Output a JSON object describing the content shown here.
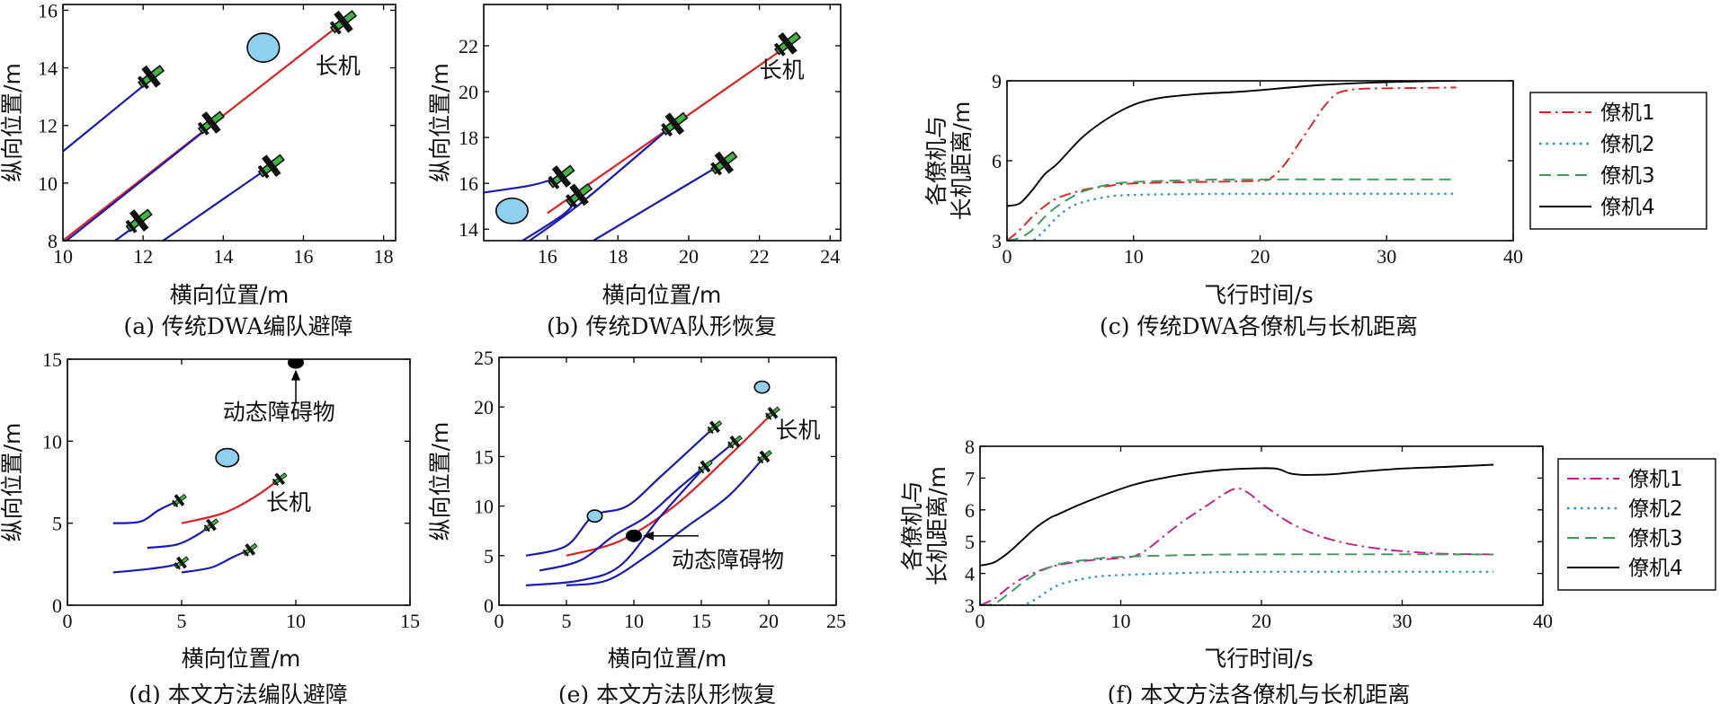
{
  "colors": {
    "leader": "#e02020",
    "follower": "#1a1ab5",
    "obstacle": "#8fd0ee",
    "plane": "#3fb63f",
    "black": "#000000",
    "dist1_c": "#e02020",
    "dist1_f": "#c81a8c",
    "dist2": "#1f8fd6",
    "dist3": "#3a9a5a",
    "dist4": "#000000"
  },
  "chart_data": [
    {
      "id": "a",
      "type": "line",
      "caption": "(a) 传统DWA编队避障",
      "xlabel": "横向位置/m",
      "ylabel": "纵向位置/m",
      "xlim": [
        10,
        18.3
      ],
      "ylim": [
        8,
        16.2
      ],
      "xticks": [
        "10",
        "12",
        "14",
        "16",
        "18"
      ],
      "xtick_values": [
        10,
        12,
        14,
        16,
        18
      ],
      "yticks": [
        "8",
        "10",
        "12",
        "14",
        "16"
      ],
      "ytick_values": [
        8,
        10,
        12,
        14,
        16
      ],
      "series": [
        {
          "role": "leader",
          "points": [
            [
              10.0,
              8.0
            ],
            [
              17.0,
              15.6
            ]
          ]
        },
        {
          "role": "follower",
          "points": [
            [
              10.0,
              11.1
            ],
            [
              12.2,
              13.6
            ]
          ]
        },
        {
          "role": "follower",
          "points": [
            [
              10.0,
              7.9
            ],
            [
              13.7,
              12.0
            ]
          ]
        },
        {
          "role": "follower",
          "points": [
            [
              11.3,
              8.0
            ],
            [
              12.0,
              8.7
            ]
          ]
        },
        {
          "role": "follower",
          "points": [
            [
              12.5,
              8.0
            ],
            [
              15.2,
              10.6
            ]
          ]
        }
      ],
      "obstacles": [
        {
          "x": 15.0,
          "y": 14.7,
          "rx": 0.4,
          "ry": 0.5
        }
      ],
      "aircraft": [
        [
          17.0,
          15.6
        ],
        [
          12.2,
          13.7
        ],
        [
          13.7,
          12.1
        ],
        [
          15.2,
          10.6
        ],
        [
          11.9,
          8.7
        ]
      ],
      "annotations": [
        {
          "text": "长机",
          "x": 16.3,
          "y": 13.8
        }
      ]
    },
    {
      "id": "b",
      "type": "line",
      "caption": "(b) 传统DWA队形恢复",
      "xlabel": "横向位置/m",
      "ylabel": "纵向位置/m",
      "xlim": [
        14.2,
        24.3
      ],
      "ylim": [
        13.5,
        23.8
      ],
      "xticks": [
        "16",
        "18",
        "20",
        "22",
        "24"
      ],
      "xtick_values": [
        16,
        18,
        20,
        22,
        24
      ],
      "yticks": [
        "14",
        "16",
        "18",
        "20",
        "22"
      ],
      "ytick_values": [
        14,
        16,
        18,
        20,
        22
      ],
      "series": [
        {
          "role": "leader",
          "points": [
            [
              16.0,
              14.7
            ],
            [
              22.8,
              22.0
            ]
          ]
        },
        {
          "role": "follower",
          "points": [
            [
              14.2,
              15.6
            ],
            [
              15.5,
              15.9
            ],
            [
              16.2,
              16.2
            ],
            [
              16.4,
              16.3
            ]
          ]
        },
        {
          "role": "follower",
          "points": [
            [
              15.3,
              13.5
            ],
            [
              16.5,
              14.7
            ],
            [
              16.9,
              15.5
            ]
          ]
        },
        {
          "role": "follower",
          "points": [
            [
              15.5,
              13.5
            ],
            [
              17.0,
              15.2
            ],
            [
              19.6,
              18.6
            ]
          ]
        },
        {
          "role": "follower",
          "points": [
            [
              17.3,
              13.5
            ],
            [
              21.0,
              16.9
            ]
          ]
        }
      ],
      "obstacles": [
        {
          "x": 15.0,
          "y": 14.8,
          "rx": 0.45,
          "ry": 0.55
        }
      ],
      "aircraft": [
        [
          22.8,
          22.1
        ],
        [
          19.6,
          18.6
        ],
        [
          16.4,
          16.3
        ],
        [
          16.9,
          15.5
        ],
        [
          21.0,
          16.9
        ]
      ],
      "annotations": [
        {
          "text": "长机",
          "x": 22.0,
          "y": 20.6
        }
      ]
    },
    {
      "id": "c",
      "type": "line",
      "caption": "(c) 传统DWA各僚机与长机距离",
      "xlabel": "飞行时间/s",
      "ylabel_lines": [
        "各僚机与",
        "长机距离/m"
      ],
      "xlim": [
        0,
        40
      ],
      "ylim": [
        3,
        9
      ],
      "xticks": [
        "0",
        "10",
        "20",
        "30",
        "40"
      ],
      "xtick_values": [
        0,
        10,
        20,
        30,
        40
      ],
      "yticks": [
        "3",
        "6",
        "9"
      ],
      "ytick_values": [
        3,
        6,
        9
      ],
      "legend_position": "right",
      "series": [
        {
          "name": "僚机1",
          "style": "dashdot",
          "color_key": "dist1_c",
          "x": [
            0,
            1,
            2,
            3,
            4,
            6,
            8,
            10,
            15,
            20,
            21,
            22,
            23,
            24,
            25,
            26,
            27,
            28,
            30,
            35.5
          ],
          "y": [
            3.0,
            3.4,
            3.9,
            4.3,
            4.6,
            4.9,
            5.05,
            5.15,
            5.2,
            5.25,
            5.4,
            5.9,
            6.6,
            7.3,
            8.0,
            8.5,
            8.65,
            8.7,
            8.72,
            8.75
          ]
        },
        {
          "name": "僚机2",
          "style": "dotted",
          "color_key": "dist2",
          "x": [
            0,
            1,
            2,
            3,
            4,
            5,
            6,
            8,
            10,
            15,
            20,
            35.5
          ],
          "y": [
            3.0,
            3.0,
            3.0,
            3.4,
            3.9,
            4.25,
            4.45,
            4.65,
            4.72,
            4.75,
            4.76,
            4.76
          ]
        },
        {
          "name": "僚机3",
          "style": "dashed",
          "color_key": "dist3",
          "x": [
            0,
            1,
            2,
            3,
            4,
            5,
            6,
            8,
            10,
            15,
            20,
            35.5
          ],
          "y": [
            3.0,
            3.1,
            3.4,
            3.9,
            4.3,
            4.6,
            4.85,
            5.1,
            5.2,
            5.28,
            5.3,
            5.3
          ]
        },
        {
          "name": "僚机4",
          "style": "solid",
          "color_key": "dist4",
          "x": [
            0,
            1,
            2,
            3,
            4,
            6,
            8,
            10,
            12,
            15,
            18,
            20,
            25,
            30,
            35.5
          ],
          "y": [
            4.3,
            4.4,
            4.9,
            5.5,
            5.9,
            6.9,
            7.6,
            8.1,
            8.35,
            8.5,
            8.58,
            8.65,
            8.85,
            8.95,
            9.0
          ]
        }
      ]
    },
    {
      "id": "d",
      "type": "line",
      "caption": "(d) 本文方法编队避障",
      "xlabel": "横向位置/m",
      "ylabel": "纵向位置/m",
      "xlim": [
        0,
        15
      ],
      "ylim": [
        0,
        15
      ],
      "xticks": [
        "0",
        "5",
        "10",
        "15"
      ],
      "xtick_values": [
        0,
        5,
        10,
        15
      ],
      "yticks": [
        "0",
        "5",
        "10",
        "15"
      ],
      "ytick_values": [
        0,
        5,
        10,
        15
      ],
      "series": [
        {
          "role": "leader",
          "points": [
            [
              5.0,
              5.0
            ],
            [
              6.8,
              5.6
            ],
            [
              8.2,
              6.6
            ],
            [
              9.3,
              7.7
            ]
          ]
        },
        {
          "role": "follower",
          "points": [
            [
              2.0,
              5.0
            ],
            [
              3.2,
              5.1
            ],
            [
              4.0,
              5.8
            ],
            [
              4.9,
              6.4
            ]
          ]
        },
        {
          "role": "follower",
          "points": [
            [
              3.5,
              3.5
            ],
            [
              4.8,
              3.7
            ],
            [
              5.7,
              4.3
            ],
            [
              6.3,
              4.9
            ]
          ]
        },
        {
          "role": "follower",
          "points": [
            [
              2.0,
              2.0
            ],
            [
              3.5,
              2.2
            ],
            [
              4.5,
              2.4
            ],
            [
              5.0,
              2.6
            ]
          ]
        },
        {
          "role": "follower",
          "points": [
            [
              5.0,
              2.0
            ],
            [
              6.3,
              2.3
            ],
            [
              7.2,
              2.9
            ],
            [
              8.0,
              3.4
            ]
          ]
        }
      ],
      "obstacles": [
        {
          "x": 7.0,
          "y": 9.0,
          "rx": 0.5,
          "ry": 0.55
        }
      ],
      "dynamic_obstacle": {
        "x": 10.0,
        "y": 14.8
      },
      "aircraft": [
        [
          9.3,
          7.7
        ],
        [
          4.9,
          6.4
        ],
        [
          6.3,
          4.9
        ],
        [
          5.0,
          2.6
        ],
        [
          8.0,
          3.4
        ]
      ],
      "annotations": [
        {
          "text": "长机",
          "x": 8.7,
          "y": 5.8
        },
        {
          "text": "动态障碍物",
          "x": 6.8,
          "y": 11.3
        }
      ]
    },
    {
      "id": "e",
      "type": "line",
      "caption": "(e) 本文方法队形恢复",
      "xlabel": "横向位置/m",
      "ylabel": "纵向位置/m",
      "xlim": [
        0,
        25
      ],
      "ylim": [
        0,
        25
      ],
      "xticks": [
        "0",
        "5",
        "10",
        "15",
        "20",
        "25"
      ],
      "xtick_values": [
        0,
        5,
        10,
        15,
        20,
        25
      ],
      "yticks": [
        "0",
        "5",
        "10",
        "15",
        "20",
        "25"
      ],
      "ytick_values": [
        0,
        5,
        10,
        15,
        20,
        25
      ],
      "series": [
        {
          "role": "leader",
          "points": [
            [
              5.0,
              5.0
            ],
            [
              9.0,
              6.5
            ],
            [
              13.0,
              10.0
            ],
            [
              17.0,
              15.0
            ],
            [
              20.3,
              19.4
            ]
          ]
        },
        {
          "role": "follower",
          "points": [
            [
              2.0,
              5.0
            ],
            [
              5.0,
              6.0
            ],
            [
              7.0,
              9.0
            ],
            [
              9.5,
              10.0
            ],
            [
              12.0,
              13.0
            ],
            [
              16.0,
              18.0
            ]
          ]
        },
        {
          "role": "follower",
          "points": [
            [
              3.0,
              3.5
            ],
            [
              6.0,
              4.5
            ],
            [
              8.5,
              7.0
            ],
            [
              11.0,
              9.0
            ],
            [
              13.5,
              12.0
            ],
            [
              17.5,
              16.5
            ]
          ]
        },
        {
          "role": "follower",
          "points": [
            [
              2.0,
              2.0
            ],
            [
              6.0,
              2.5
            ],
            [
              9.0,
              4.0
            ],
            [
              12.0,
              9.0
            ],
            [
              15.3,
              14.0
            ]
          ]
        },
        {
          "role": "follower",
          "points": [
            [
              5.0,
              2.0
            ],
            [
              8.0,
              2.5
            ],
            [
              11.0,
              5.0
            ],
            [
              14.0,
              8.0
            ],
            [
              17.0,
              11.0
            ],
            [
              19.7,
              15.0
            ]
          ]
        }
      ],
      "obstacles": [
        {
          "x": 7.1,
          "y": 9.0,
          "rx": 0.55,
          "ry": 0.6
        },
        {
          "x": 19.5,
          "y": 22.0,
          "rx": 0.55,
          "ry": 0.6
        }
      ],
      "dynamic_obstacle": {
        "x": 10.0,
        "y": 7.0
      },
      "aircraft": [
        [
          20.3,
          19.4
        ],
        [
          16.0,
          18.0
        ],
        [
          17.5,
          16.5
        ],
        [
          15.3,
          14.0
        ],
        [
          19.7,
          15.0
        ]
      ],
      "annotations": [
        {
          "text": "长机",
          "x": 20.5,
          "y": 16.9
        },
        {
          "text": "动态障碍物",
          "x": 12.8,
          "y": 3.8
        }
      ]
    },
    {
      "id": "f",
      "type": "line",
      "caption": "(f) 本文方法各僚机与长机距离",
      "xlabel": "飞行时间/s",
      "ylabel_lines": [
        "各僚机与",
        "长机距离/m"
      ],
      "xlim": [
        0,
        40
      ],
      "ylim": [
        3,
        8
      ],
      "xticks": [
        "0",
        "10",
        "20",
        "30",
        "40"
      ],
      "xtick_values": [
        0,
        10,
        20,
        30,
        40
      ],
      "yticks": [
        "3",
        "4",
        "5",
        "6",
        "7",
        "8"
      ],
      "ytick_values": [
        3,
        4,
        5,
        6,
        7,
        8
      ],
      "legend_position": "right",
      "series": [
        {
          "name": "僚机1",
          "style": "dashdot",
          "color_key": "dist1_f",
          "x": [
            0,
            1,
            2,
            3,
            4,
            5,
            6,
            8,
            10,
            11,
            12,
            14,
            16,
            18,
            19,
            20,
            22,
            24,
            26,
            28,
            30,
            33,
            36.5
          ],
          "y": [
            3.0,
            3.2,
            3.55,
            3.85,
            4.05,
            4.2,
            4.3,
            4.42,
            4.48,
            4.55,
            4.8,
            5.5,
            6.1,
            6.65,
            6.55,
            6.2,
            5.6,
            5.2,
            4.95,
            4.8,
            4.7,
            4.62,
            4.6
          ]
        },
        {
          "name": "僚机2",
          "style": "dotted",
          "color_key": "dist2",
          "x": [
            0,
            2,
            3,
            4,
            5,
            6,
            8,
            10,
            15,
            20,
            36.5
          ],
          "y": [
            3.0,
            3.0,
            3.0,
            3.2,
            3.5,
            3.7,
            3.88,
            3.95,
            4.02,
            4.05,
            4.05
          ]
        },
        {
          "name": "僚机3",
          "style": "dashed",
          "color_key": "dist3",
          "x": [
            0,
            1,
            2,
            3,
            4,
            5,
            6,
            8,
            10,
            15,
            20,
            36.5
          ],
          "y": [
            3.0,
            3.05,
            3.35,
            3.7,
            4.0,
            4.2,
            4.33,
            4.45,
            4.52,
            4.58,
            4.6,
            4.6
          ]
        },
        {
          "name": "僚机4",
          "style": "solid",
          "color_key": "dist4",
          "x": [
            0,
            1,
            2,
            3,
            4,
            5,
            5.5,
            7,
            9,
            11,
            13,
            15,
            17,
            19,
            21,
            22,
            23,
            25,
            27,
            30,
            33,
            36.5
          ],
          "y": [
            4.25,
            4.35,
            4.65,
            5.05,
            5.45,
            5.75,
            5.85,
            6.15,
            6.5,
            6.8,
            7.0,
            7.15,
            7.25,
            7.3,
            7.3,
            7.15,
            7.1,
            7.12,
            7.2,
            7.3,
            7.35,
            7.42
          ]
        }
      ]
    }
  ]
}
